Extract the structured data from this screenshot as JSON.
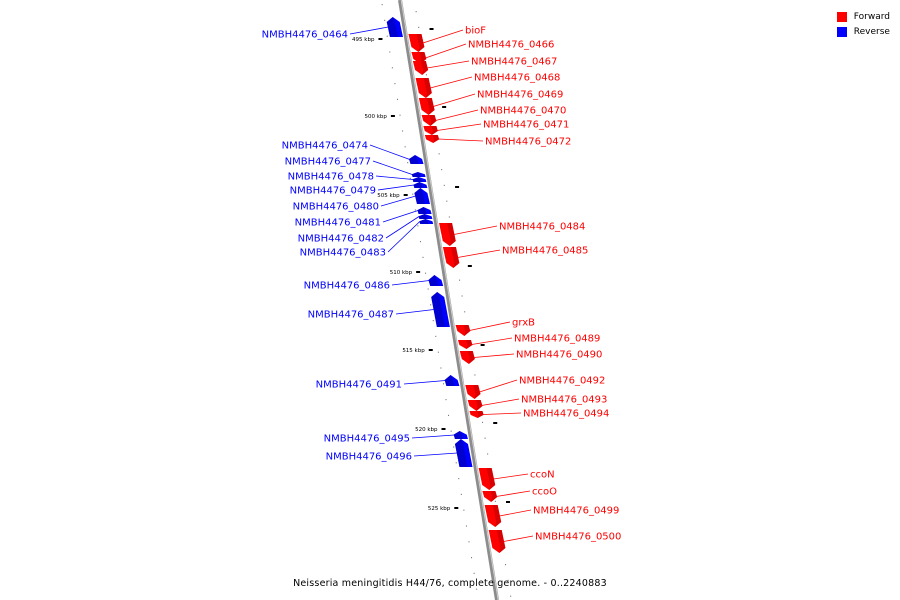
{
  "legend": {
    "items": [
      {
        "label": "Forward",
        "color": "#ff0000"
      },
      {
        "label": "Reverse",
        "color": "#0000ff"
      }
    ]
  },
  "caption": "Neisseria meningitidis H44/76, complete genome. - 0..2240883",
  "colors": {
    "forward": "#ff0000",
    "forward_dark": "#b80000",
    "reverse": "#0000ff",
    "reverse_dark": "#0000a8",
    "backbone": "#8c8c8c"
  },
  "scale_labels": [
    "495 kbp",
    "500 kbp",
    "505 kbp",
    "510 kbp",
    "515 kbp",
    "520 kbp",
    "525 kbp"
  ],
  "genes": [
    {
      "name": "bioF",
      "strand": "forward"
    },
    {
      "name": "NMBH4476_0464",
      "strand": "reverse"
    },
    {
      "name": "NMBH4476_0466",
      "strand": "forward"
    },
    {
      "name": "NMBH4476_0467",
      "strand": "forward"
    },
    {
      "name": "NMBH4476_0468",
      "strand": "forward"
    },
    {
      "name": "NMBH4476_0469",
      "strand": "forward"
    },
    {
      "name": "NMBH4476_0470",
      "strand": "forward"
    },
    {
      "name": "NMBH4476_0471",
      "strand": "forward"
    },
    {
      "name": "NMBH4476_0472",
      "strand": "forward"
    },
    {
      "name": "NMBH4476_0474",
      "strand": "reverse"
    },
    {
      "name": "NMBH4476_0477",
      "strand": "reverse"
    },
    {
      "name": "NMBH4476_0478",
      "strand": "reverse"
    },
    {
      "name": "NMBH4476_0479",
      "strand": "reverse"
    },
    {
      "name": "NMBH4476_0480",
      "strand": "reverse"
    },
    {
      "name": "NMBH4476_0481",
      "strand": "reverse"
    },
    {
      "name": "NMBH4476_0482",
      "strand": "reverse"
    },
    {
      "name": "NMBH4476_0483",
      "strand": "reverse"
    },
    {
      "name": "NMBH4476_0484",
      "strand": "forward"
    },
    {
      "name": "NMBH4476_0485",
      "strand": "forward"
    },
    {
      "name": "NMBH4476_0486",
      "strand": "reverse"
    },
    {
      "name": "NMBH4476_0487",
      "strand": "reverse"
    },
    {
      "name": "grxB",
      "strand": "forward"
    },
    {
      "name": "NMBH4476_0489",
      "strand": "forward"
    },
    {
      "name": "NMBH4476_0490",
      "strand": "forward"
    },
    {
      "name": "NMBH4476_0491",
      "strand": "reverse"
    },
    {
      "name": "NMBH4476_0492",
      "strand": "forward"
    },
    {
      "name": "NMBH4476_0493",
      "strand": "forward"
    },
    {
      "name": "NMBH4476_0494",
      "strand": "forward"
    },
    {
      "name": "NMBH4476_0495",
      "strand": "reverse"
    },
    {
      "name": "NMBH4476_0496",
      "strand": "reverse"
    },
    {
      "name": "ccoN",
      "strand": "forward"
    },
    {
      "name": "ccoO",
      "strand": "forward"
    },
    {
      "name": "NMBH4476_0499",
      "strand": "forward"
    },
    {
      "name": "NMBH4476_0500",
      "strand": "forward"
    }
  ]
}
